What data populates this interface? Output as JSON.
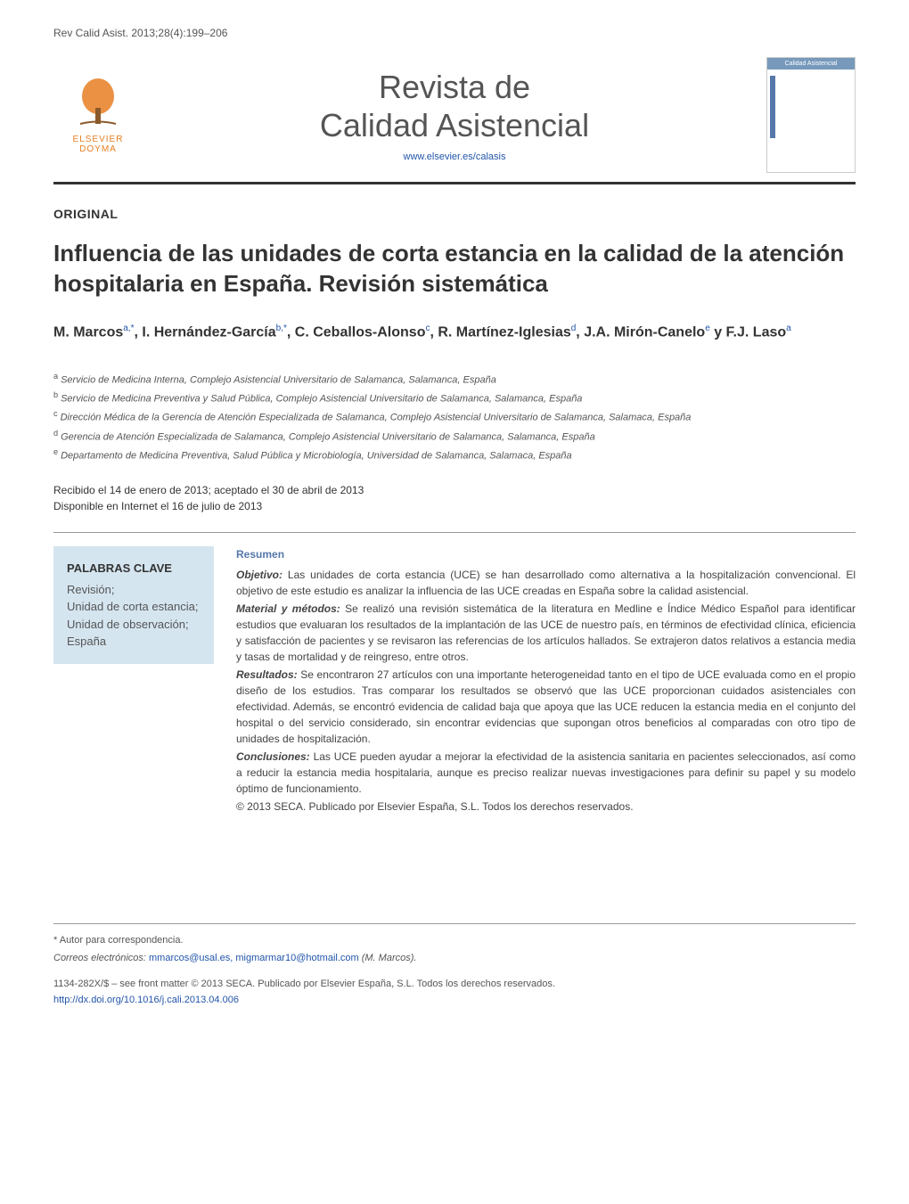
{
  "citation": "Rev Calid Asist. 2013;28(4):199–206",
  "publisher": {
    "logo_text_top": "ELSEVIER",
    "logo_text_bottom": "DOYMA",
    "logo_color": "#e67e22"
  },
  "journal": {
    "title_line1": "Revista de",
    "title_line2": "Calidad Asistencial",
    "url": "www.elsevier.es/calasis",
    "cover_label": "Calidad Asistencial"
  },
  "article": {
    "type": "ORIGINAL",
    "title": "Influencia de las unidades de corta estancia en la calidad de la atención hospitalaria en España. Revisión sistemática",
    "authors_html": "M. Marcos<sup>a,*</sup>, I. Hernández-García<sup>b,*</sup>, C. Ceballos-Alonso<sup>c</sup>, R. Martínez-Iglesias<sup>d</sup>, J.A. Mirón-Canelo<sup>e</sup> y F.J. Laso<sup>a</sup>",
    "affiliations": [
      {
        "sup": "a",
        "text": "Servicio de Medicina Interna, Complejo Asistencial Universitario de Salamanca, Salamanca, España"
      },
      {
        "sup": "b",
        "text": "Servicio de Medicina Preventiva y Salud Pública, Complejo Asistencial Universitario de Salamanca, Salamanca, España"
      },
      {
        "sup": "c",
        "text": "Dirección Médica de la Gerencia de Atención Especializada de Salamanca, Complejo Asistencial Universitario de Salamanca, Salamaca, España"
      },
      {
        "sup": "d",
        "text": "Gerencia de Atención Especializada de Salamanca, Complejo Asistencial Universitario de Salamanca, Salamanca, España"
      },
      {
        "sup": "e",
        "text": "Departamento de Medicina Preventiva, Salud Pública y Microbiología, Universidad de Salamanca, Salamaca, España"
      }
    ],
    "dates": {
      "received_accepted": "Recibido el 14 de enero de 2013; aceptado el 30 de abril de 2013",
      "online": "Disponible en Internet el 16 de julio de 2013"
    },
    "keywords": {
      "title": "PALABRAS CLAVE",
      "items": "Revisión;\nUnidad de corta estancia;\nUnidad de observación;\nEspaña"
    },
    "abstract": {
      "heading": "Resumen",
      "sections": [
        {
          "label": "Objetivo:",
          "text": "Las unidades de corta estancia (UCE) se han desarrollado como alternativa a la hospitalización convencional. El objetivo de este estudio es analizar la influencia de las UCE creadas en España sobre la calidad asistencial."
        },
        {
          "label": "Material y métodos:",
          "text": "Se realizó una revisión sistemática de la literatura en Medline e Índice Médico Español para identificar estudios que evaluaran los resultados de la implantación de las UCE de nuestro país, en términos de efectividad clínica, eficiencia y satisfacción de pacientes y se revisaron las referencias de los artículos hallados. Se extrajeron datos relativos a estancia media y tasas de mortalidad y de reingreso, entre otros."
        },
        {
          "label": "Resultados:",
          "text": "Se encontraron 27 artículos con una importante heterogeneidad tanto en el tipo de UCE evaluada como en el propio diseño de los estudios. Tras comparar los resultados se observó que las UCE proporcionan cuidados asistenciales con efectividad. Además, se encontró evidencia de calidad baja que apoya que las UCE reducen la estancia media en el conjunto del hospital o del servicio considerado, sin encontrar evidencias que supongan otros beneficios al comparadas con otro tipo de unidades de hospitalización."
        },
        {
          "label": "Conclusiones:",
          "text": "Las UCE pueden ayudar a mejorar la efectividad de la asistencia sanitaria en pacientes seleccionados, así como a reducir la estancia media hospitalaria, aunque es preciso realizar nuevas investigaciones para definir su papel y su modelo óptimo de funcionamiento."
        }
      ],
      "copyright": "© 2013 SECA. Publicado por Elsevier España, S.L. Todos los derechos reservados."
    }
  },
  "footer": {
    "corresponding": "* Autor para correspondencia.",
    "emails_label": "Correos electrónicos:",
    "emails": "mmarcos@usal.es, migmarmar10@hotmail.com",
    "emails_suffix": "(M. Marcos).",
    "front_matter": "1134-282X/$ – see front matter © 2013 SECA. Publicado por Elsevier España, S.L. Todos los derechos reservados.",
    "doi": "http://dx.doi.org/10.1016/j.cali.2013.04.006"
  },
  "colors": {
    "accent": "#5577aa",
    "link": "#2255aa",
    "keyword_bg": "#d5e5f0",
    "text": "#333333"
  }
}
